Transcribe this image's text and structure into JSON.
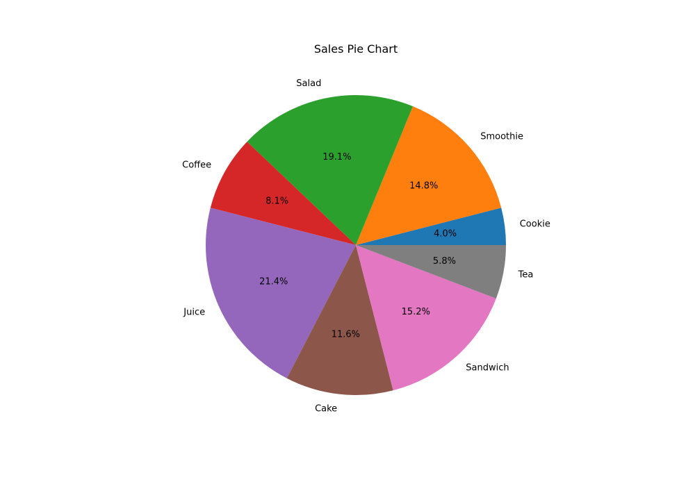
{
  "chart_data": {
    "type": "pie",
    "title": "Sales Pie Chart",
    "start_angle_deg": 0,
    "direction": "counterclockwise",
    "slices": [
      {
        "label": "Cookie",
        "percent": 4.0,
        "percent_label": "4.0%",
        "color": "#1f77b4"
      },
      {
        "label": "Smoothie",
        "percent": 14.8,
        "percent_label": "14.8%",
        "color": "#ff7f0e"
      },
      {
        "label": "Salad",
        "percent": 19.1,
        "percent_label": "19.1%",
        "color": "#2ca02c"
      },
      {
        "label": "Coffee",
        "percent": 8.1,
        "percent_label": "8.1%",
        "color": "#d62728"
      },
      {
        "label": "Juice",
        "percent": 21.4,
        "percent_label": "21.4%",
        "color": "#9467bd"
      },
      {
        "label": "Cake",
        "percent": 11.6,
        "percent_label": "11.6%",
        "color": "#8c564b"
      },
      {
        "label": "Sandwich",
        "percent": 15.2,
        "percent_label": "15.2%",
        "color": "#e377c2"
      },
      {
        "label": "Tea",
        "percent": 5.8,
        "percent_label": "5.8%",
        "color": "#7f7f7f"
      }
    ]
  }
}
